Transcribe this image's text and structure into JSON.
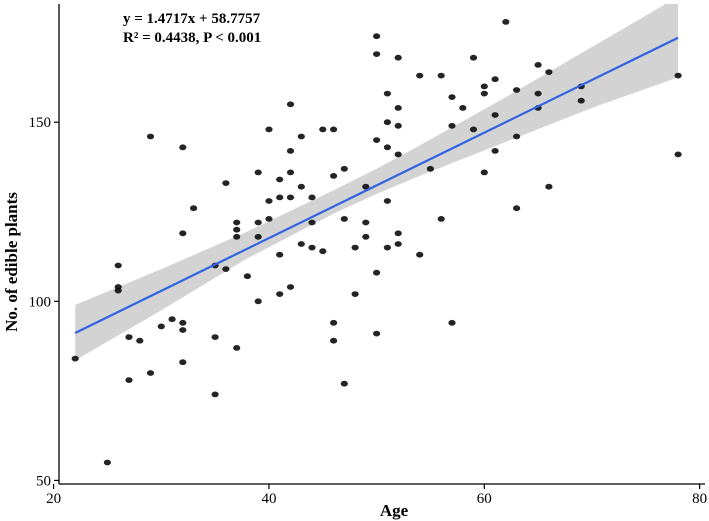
{
  "chart_data": {
    "type": "scatter",
    "title": "",
    "xlabel": "Age",
    "ylabel": "No. of edible plants",
    "xlim": [
      20.5,
      80.5
    ],
    "ylim": [
      49,
      183
    ],
    "xticks": [
      20,
      40,
      60,
      80
    ],
    "yticks": [
      50,
      100,
      150
    ],
    "grid": false,
    "annotations": [
      "y = 1.4717x + 58.7757",
      "R² = 0.4438, P < 0.001"
    ],
    "regression": {
      "slope": 1.4717,
      "intercept": 58.7757,
      "x_range": [
        22,
        78
      ],
      "line_color": "#3163e0",
      "band_color": "#d3d3d3"
    },
    "confidence_band": {
      "x": [
        22,
        30,
        38,
        46,
        50,
        54,
        62,
        70,
        78
      ],
      "lower": [
        83.5,
        97.5,
        112,
        124.5,
        130,
        135,
        144.5,
        154,
        162.5
      ],
      "upper": [
        99,
        109,
        119.5,
        131,
        137,
        143.5,
        157,
        171,
        185
      ]
    },
    "points": [
      [
        22,
        84
      ],
      [
        25,
        55
      ],
      [
        26,
        110
      ],
      [
        26,
        104
      ],
      [
        26,
        103
      ],
      [
        27,
        90
      ],
      [
        27,
        78
      ],
      [
        28,
        89
      ],
      [
        29,
        146
      ],
      [
        29,
        80
      ],
      [
        30,
        93
      ],
      [
        31,
        95
      ],
      [
        32,
        143
      ],
      [
        32,
        119
      ],
      [
        32,
        94
      ],
      [
        32,
        92
      ],
      [
        32,
        83
      ],
      [
        33,
        126
      ],
      [
        35,
        110
      ],
      [
        35,
        90
      ],
      [
        35,
        74
      ],
      [
        36,
        133
      ],
      [
        36,
        109
      ],
      [
        37,
        122
      ],
      [
        37,
        120
      ],
      [
        37,
        118
      ],
      [
        37,
        87
      ],
      [
        38,
        107
      ],
      [
        39,
        136
      ],
      [
        39,
        122
      ],
      [
        39,
        118
      ],
      [
        39,
        100
      ],
      [
        40,
        148
      ],
      [
        40,
        128
      ],
      [
        40,
        123
      ],
      [
        41,
        134
      ],
      [
        41,
        129
      ],
      [
        41,
        113
      ],
      [
        41,
        102
      ],
      [
        42,
        155
      ],
      [
        42,
        142
      ],
      [
        42,
        136
      ],
      [
        42,
        129
      ],
      [
        42,
        104
      ],
      [
        43,
        146
      ],
      [
        43,
        132
      ],
      [
        43,
        116
      ],
      [
        44,
        129
      ],
      [
        44,
        122
      ],
      [
        44,
        115
      ],
      [
        45,
        148
      ],
      [
        45,
        114
      ],
      [
        46,
        148
      ],
      [
        46,
        135
      ],
      [
        46,
        94
      ],
      [
        46,
        89
      ],
      [
        47,
        137
      ],
      [
        47,
        123
      ],
      [
        47,
        77
      ],
      [
        48,
        115
      ],
      [
        48,
        102
      ],
      [
        49,
        132
      ],
      [
        49,
        122
      ],
      [
        49,
        118
      ],
      [
        50,
        174
      ],
      [
        50,
        169
      ],
      [
        50,
        145
      ],
      [
        50,
        108
      ],
      [
        50,
        91
      ],
      [
        51,
        158
      ],
      [
        51,
        150
      ],
      [
        51,
        143
      ],
      [
        51,
        128
      ],
      [
        51,
        115
      ],
      [
        52,
        168
      ],
      [
        52,
        154
      ],
      [
        52,
        149
      ],
      [
        52,
        141
      ],
      [
        52,
        119
      ],
      [
        52,
        116
      ],
      [
        54,
        163
      ],
      [
        54,
        113
      ],
      [
        55,
        137
      ],
      [
        56,
        163
      ],
      [
        56,
        123
      ],
      [
        57,
        157
      ],
      [
        57,
        149
      ],
      [
        57,
        94
      ],
      [
        58,
        154
      ],
      [
        59,
        168
      ],
      [
        59,
        148
      ],
      [
        60,
        160
      ],
      [
        60,
        158
      ],
      [
        60,
        136
      ],
      [
        61,
        162
      ],
      [
        61,
        152
      ],
      [
        61,
        142
      ],
      [
        62,
        178
      ],
      [
        63,
        159
      ],
      [
        63,
        146
      ],
      [
        63,
        126
      ],
      [
        65,
        166
      ],
      [
        65,
        158
      ],
      [
        65,
        154
      ],
      [
        66,
        164
      ],
      [
        66,
        132
      ],
      [
        69,
        160
      ],
      [
        69,
        156
      ],
      [
        78,
        163
      ],
      [
        78,
        141
      ]
    ]
  }
}
